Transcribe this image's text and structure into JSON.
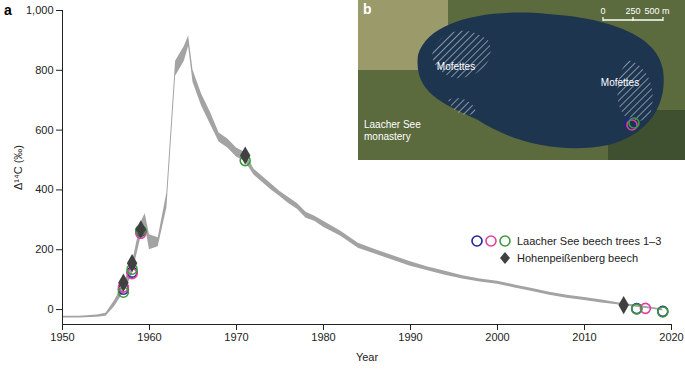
{
  "chart_data": {
    "type": "line",
    "panel_label": "a",
    "x_label": "Year",
    "y_label": "Δ¹⁴C (‰)",
    "xlim": [
      1950,
      2020
    ],
    "xticks": [
      1950,
      1960,
      1970,
      1980,
      1990,
      2000,
      2010,
      2020
    ],
    "ylim": [
      -50,
      1000
    ],
    "yticks": [
      0,
      200,
      400,
      600,
      800,
      {
        "value": 1000,
        "label": "1,000"
      }
    ],
    "band": {
      "type": "area",
      "color": "#a3a3a3",
      "x": [
        1950,
        1952,
        1954,
        1955,
        1956,
        1957,
        1958,
        1959,
        1959.5,
        1960,
        1961,
        1962,
        1963,
        1964,
        1964.5,
        1965,
        1966,
        1967,
        1968,
        1969,
        1970,
        1971,
        1972,
        1973,
        1974,
        1975,
        1976,
        1977,
        1978,
        1979,
        1980,
        1982,
        1984,
        1986,
        1988,
        1990,
        1992,
        1994,
        1996,
        1998,
        2000,
        2002,
        2004,
        2006,
        2008,
        2010,
        2012,
        2014,
        2016,
        2018,
        2019
      ],
      "low": [
        -28,
        -28,
        -26,
        -22,
        10,
        55,
        115,
        240,
        280,
        200,
        210,
        340,
        780,
        830,
        880,
        760,
        680,
        620,
        560,
        540,
        510,
        495,
        450,
        425,
        400,
        378,
        355,
        335,
        305,
        295,
        275,
        245,
        205,
        185,
        165,
        145,
        130,
        115,
        102,
        92,
        85,
        72,
        60,
        48,
        38,
        30,
        22,
        15,
        8,
        0,
        -5
      ],
      "high": [
        -22,
        -22,
        -18,
        -12,
        30,
        85,
        150,
        290,
        320,
        250,
        240,
        390,
        830,
        880,
        915,
        800,
        720,
        660,
        590,
        570,
        540,
        525,
        470,
        445,
        420,
        395,
        375,
        355,
        325,
        312,
        295,
        262,
        222,
        200,
        180,
        160,
        142,
        128,
        113,
        102,
        95,
        82,
        70,
        58,
        48,
        40,
        32,
        22,
        14,
        6,
        2
      ]
    },
    "series": [
      {
        "name": "Laacher See beech trees 1–3",
        "type": "scatter",
        "marker": "circle",
        "trees": [
          {
            "color": "#23239a",
            "x": [
              1957,
              1958,
              1959,
              2016,
              2019
            ],
            "values": [
              68,
              125,
              262,
              3,
              -6
            ]
          },
          {
            "color": "#e0409c",
            "x": [
              1957,
              1958,
              1959,
              2017
            ],
            "values": [
              75,
              120,
              255,
              4
            ]
          },
          {
            "color": "#3c9a3c",
            "x": [
              1957,
              1958,
              1959,
              1971,
              2016,
              2019
            ],
            "values": [
              58,
              135,
              265,
              498,
              2,
              -8
            ]
          }
        ]
      },
      {
        "name": "Hohenpeißenberg beech",
        "type": "scatter",
        "marker": "diamond",
        "color": "#404040",
        "x": [
          1957,
          1958,
          1959,
          1971,
          2014.5
        ],
        "values": [
          90,
          155,
          268,
          515,
          15
        ]
      }
    ],
    "legend": "bottom-right",
    "inset": {
      "panel_label": "b",
      "labels": [
        "Mofettes",
        "Mofettes",
        "Laacher See monastery"
      ],
      "scale_bar": [
        "0",
        "250",
        "500 m"
      ]
    }
  }
}
